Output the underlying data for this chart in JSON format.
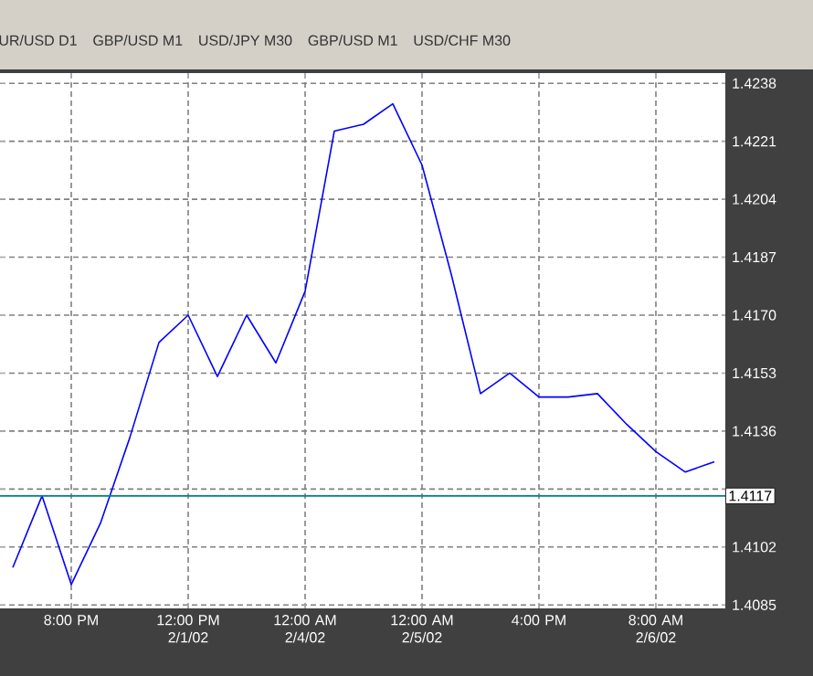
{
  "chart_data": {
    "type": "line",
    "annotations": [
      "UR/USD D1",
      "GBP/USD M1",
      "USD/JPY M30",
      "GBP/USD M1",
      "USD/CHF M30"
    ],
    "categories": [
      null,
      null,
      "8:00 PM",
      null,
      null,
      null,
      "12:00 PM 2/1/02",
      null,
      null,
      null,
      "12:00 AM 2/4/02",
      null,
      null,
      null,
      "12:00 AM 2/5/02",
      null,
      null,
      null,
      "4:00 PM",
      null,
      null,
      null,
      "8:00 AM 2/6/02",
      null,
      null
    ],
    "series": [
      {
        "color": "#0000ff",
        "values": [
          1.4096,
          1.4117,
          1.4091,
          1.4109,
          1.4134,
          1.4162,
          1.417,
          1.4152,
          1.417,
          1.4156,
          1.4177,
          1.4224,
          1.4226,
          1.4232,
          1.4214,
          1.4182,
          1.4147,
          1.4153,
          1.4146,
          1.4146,
          1.4147,
          1.4138,
          1.413,
          1.4124,
          1.4127
        ]
      }
    ],
    "ylim": [
      1.4084,
      1.4241
    ],
    "yticks": [
      1.4085,
      1.4102,
      {
        "value": 1.4119,
        "label": null
      },
      1.4136,
      1.4153,
      {
        "value": 1.417,
        "label": "1.4170"
      },
      1.4187,
      1.4204,
      1.4221,
      1.4238
    ],
    "ref_lines": [
      {
        "axis": "y",
        "value": 1.4117,
        "label": "1.4117",
        "color": "#008080"
      }
    ],
    "grid": true,
    "marker": "none",
    "line_style": "solid"
  }
}
